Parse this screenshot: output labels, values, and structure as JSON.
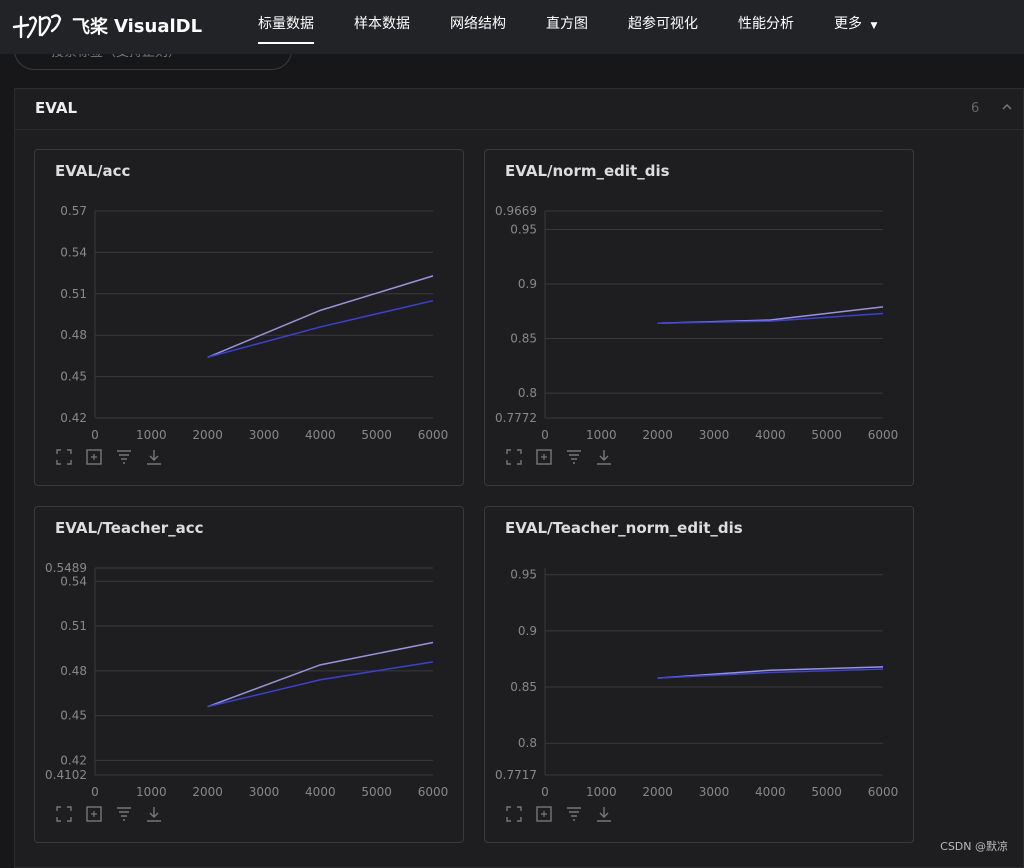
{
  "app": {
    "brand": "VisualDL",
    "brand_cn": "飞桨"
  },
  "nav": {
    "items": [
      {
        "label": "标量数据",
        "active": true
      },
      {
        "label": "样本数据",
        "active": false
      },
      {
        "label": "网络结构",
        "active": false
      },
      {
        "label": "直方图",
        "active": false
      },
      {
        "label": "超参可视化",
        "active": false
      },
      {
        "label": "性能分析",
        "active": false
      },
      {
        "label": "更多",
        "active": false
      }
    ]
  },
  "search": {
    "placeholder": "搜索标签（支持正则）"
  },
  "group": {
    "title": "EVAL",
    "count": "6"
  },
  "colors": {
    "series_light": "#9a93d8",
    "series_dark": "#3f3fd0",
    "grid": "#3a3a3d",
    "axis_text": "#888888"
  },
  "chart_data": [
    {
      "type": "line",
      "title": "EVAL/acc",
      "xticks": [
        "0",
        "1000",
        "2000",
        "3000",
        "4000",
        "5000",
        "6000"
      ],
      "xlim": [
        0,
        6000
      ],
      "yticks": [
        "0.42",
        "0.45",
        "0.48",
        "0.51",
        "0.54",
        "0.57"
      ],
      "ylim": [
        0.42,
        0.57
      ],
      "grid": true,
      "series": [
        {
          "x": [
            2000,
            4000,
            6000
          ],
          "y": [
            0.464,
            0.498,
            0.523
          ]
        },
        {
          "x": [
            2000,
            4000,
            6000
          ],
          "y": [
            0.464,
            0.486,
            0.505
          ]
        }
      ]
    },
    {
      "type": "line",
      "title": "EVAL/norm_edit_dis",
      "xticks": [
        "0",
        "1000",
        "2000",
        "3000",
        "4000",
        "5000",
        "6000"
      ],
      "xlim": [
        0,
        6000
      ],
      "yticks": [
        "0.7772",
        "0.8",
        "0.85",
        "0.9",
        "0.95",
        "0.9669"
      ],
      "ylim": [
        0.7772,
        0.9669
      ],
      "grid": true,
      "series": [
        {
          "x": [
            2000,
            4000,
            6000
          ],
          "y": [
            0.864,
            0.867,
            0.879
          ]
        },
        {
          "x": [
            2000,
            4000,
            6000
          ],
          "y": [
            0.864,
            0.866,
            0.873
          ]
        }
      ]
    },
    {
      "type": "line",
      "title": "EVAL/Teacher_acc",
      "xticks": [
        "0",
        "1000",
        "2000",
        "3000",
        "4000",
        "5000",
        "6000"
      ],
      "xlim": [
        0,
        6000
      ],
      "yticks": [
        "0.4102",
        "0.42",
        "0.45",
        "0.48",
        "0.51",
        "0.54",
        "0.5489"
      ],
      "ylim": [
        0.4102,
        0.5489
      ],
      "grid": true,
      "series": [
        {
          "x": [
            2000,
            4000,
            6000
          ],
          "y": [
            0.456,
            0.484,
            0.499
          ]
        },
        {
          "x": [
            2000,
            4000,
            6000
          ],
          "y": [
            0.456,
            0.474,
            0.486
          ]
        }
      ]
    },
    {
      "type": "line",
      "title": "EVAL/Teacher_norm_edit_dis",
      "xticks": [
        "0",
        "1000",
        "2000",
        "3000",
        "4000",
        "5000",
        "6000"
      ],
      "xlim": [
        0,
        6000
      ],
      "yticks": [
        "0.7717",
        "0.8",
        "0.85",
        "0.9",
        "0.95"
      ],
      "ylim": [
        0.7717,
        0.956
      ],
      "grid": true,
      "series": [
        {
          "x": [
            2000,
            4000,
            6000
          ],
          "y": [
            0.858,
            0.865,
            0.868
          ]
        },
        {
          "x": [
            2000,
            4000,
            6000
          ],
          "y": [
            0.858,
            0.863,
            0.866
          ]
        }
      ]
    }
  ],
  "toolbar_icons": [
    "fullscreen-icon",
    "restore-zoom-icon",
    "filter-icon",
    "download-icon"
  ],
  "watermark": "CSDN @默凉"
}
